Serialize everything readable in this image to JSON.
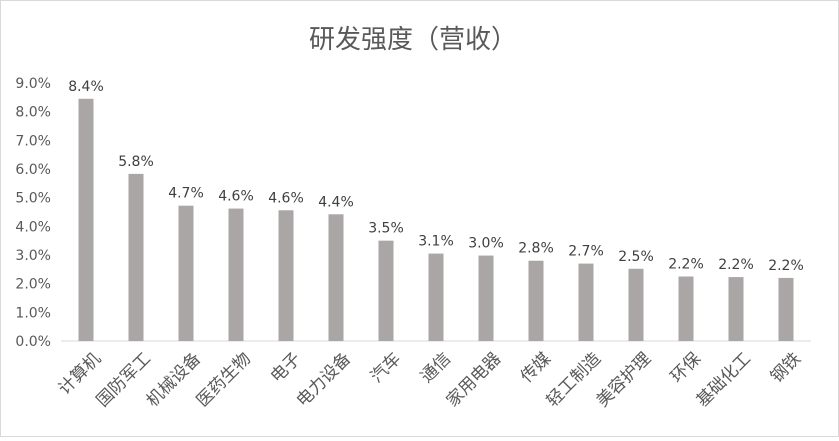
{
  "chart_data": {
    "type": "bar",
    "title": "研发强度（营收）",
    "xlabel": "",
    "ylabel": "",
    "ylim": [
      0,
      9.0
    ],
    "yticks": [
      0,
      1,
      2,
      3,
      4,
      5,
      6,
      7,
      8,
      9
    ],
    "ytick_labels": [
      "0.0%",
      "1.0%",
      "2.0%",
      "3.0%",
      "4.0%",
      "5.0%",
      "6.0%",
      "7.0%",
      "8.0%",
      "9.0%"
    ],
    "grid": false,
    "legend": "none",
    "bar_color": "#aaa6a6",
    "categories": [
      "计算机",
      "国防军工",
      "机械设备",
      "医药生物",
      "电子",
      "电力设备",
      "汽车",
      "通信",
      "家用电器",
      "传媒",
      "轻工制造",
      "美容护理",
      "环保",
      "基础化工",
      "钢铁"
    ],
    "values": [
      8.45,
      5.83,
      4.72,
      4.62,
      4.56,
      4.42,
      3.5,
      3.05,
      2.98,
      2.8,
      2.7,
      2.52,
      2.25,
      2.23,
      2.2
    ],
    "data_labels": [
      "8.4%",
      "5.8%",
      "4.7%",
      "4.6%",
      "4.6%",
      "4.4%",
      "3.5%",
      "3.1%",
      "3.0%",
      "2.8%",
      "2.7%",
      "2.5%",
      "2.2%",
      "2.2%",
      "2.2%"
    ]
  }
}
